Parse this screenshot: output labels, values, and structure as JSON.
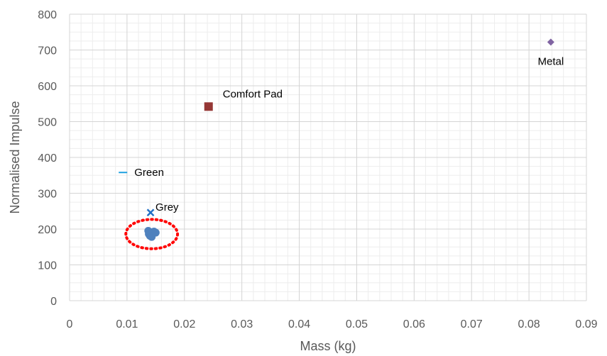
{
  "chart_data": {
    "type": "scatter",
    "title": "",
    "xlabel": "Mass (kg)",
    "ylabel": "Normalised Impulse",
    "xlim": [
      0,
      0.09
    ],
    "ylim": [
      0,
      800
    ],
    "x_ticks": [
      "0",
      "0.01",
      "0.02",
      "0.03",
      "0.04",
      "0.05",
      "0.06",
      "0.07",
      "0.08",
      "0.09"
    ],
    "y_ticks": [
      "0",
      "100",
      "200",
      "300",
      "400",
      "500",
      "600",
      "700",
      "800"
    ],
    "grid": true,
    "legend": "none",
    "series": [
      {
        "label": "Metal",
        "marker": "diamond",
        "color": "#8064a2",
        "points": [
          [
            0.0838,
            722
          ]
        ]
      },
      {
        "label": "Comfort Pad",
        "marker": "square",
        "color": "#953735",
        "points": [
          [
            0.0242,
            542
          ]
        ]
      },
      {
        "label": "Green",
        "marker": "dash",
        "color": "#1fa0e0",
        "points": [
          [
            0.0093,
            358
          ]
        ]
      },
      {
        "label": "Grey",
        "marker": "x",
        "color": "#1f6fc5",
        "points": [
          [
            0.0141,
            246
          ]
        ]
      },
      {
        "label": "",
        "marker": "circle",
        "color": "#4f81bd",
        "points": [
          [
            0.0138,
            186
          ],
          [
            0.0142,
            191
          ],
          [
            0.0146,
            188
          ],
          [
            0.014,
            181
          ],
          [
            0.0147,
            193
          ],
          [
            0.0143,
            178
          ],
          [
            0.0137,
            195
          ],
          [
            0.015,
            190
          ]
        ]
      }
    ],
    "annotations": [
      {
        "shape": "dotted-ellipse",
        "color": "#ff0000",
        "center": [
          0.0143,
          186
        ],
        "rx": 0.0045,
        "ry": 41
      }
    ]
  }
}
